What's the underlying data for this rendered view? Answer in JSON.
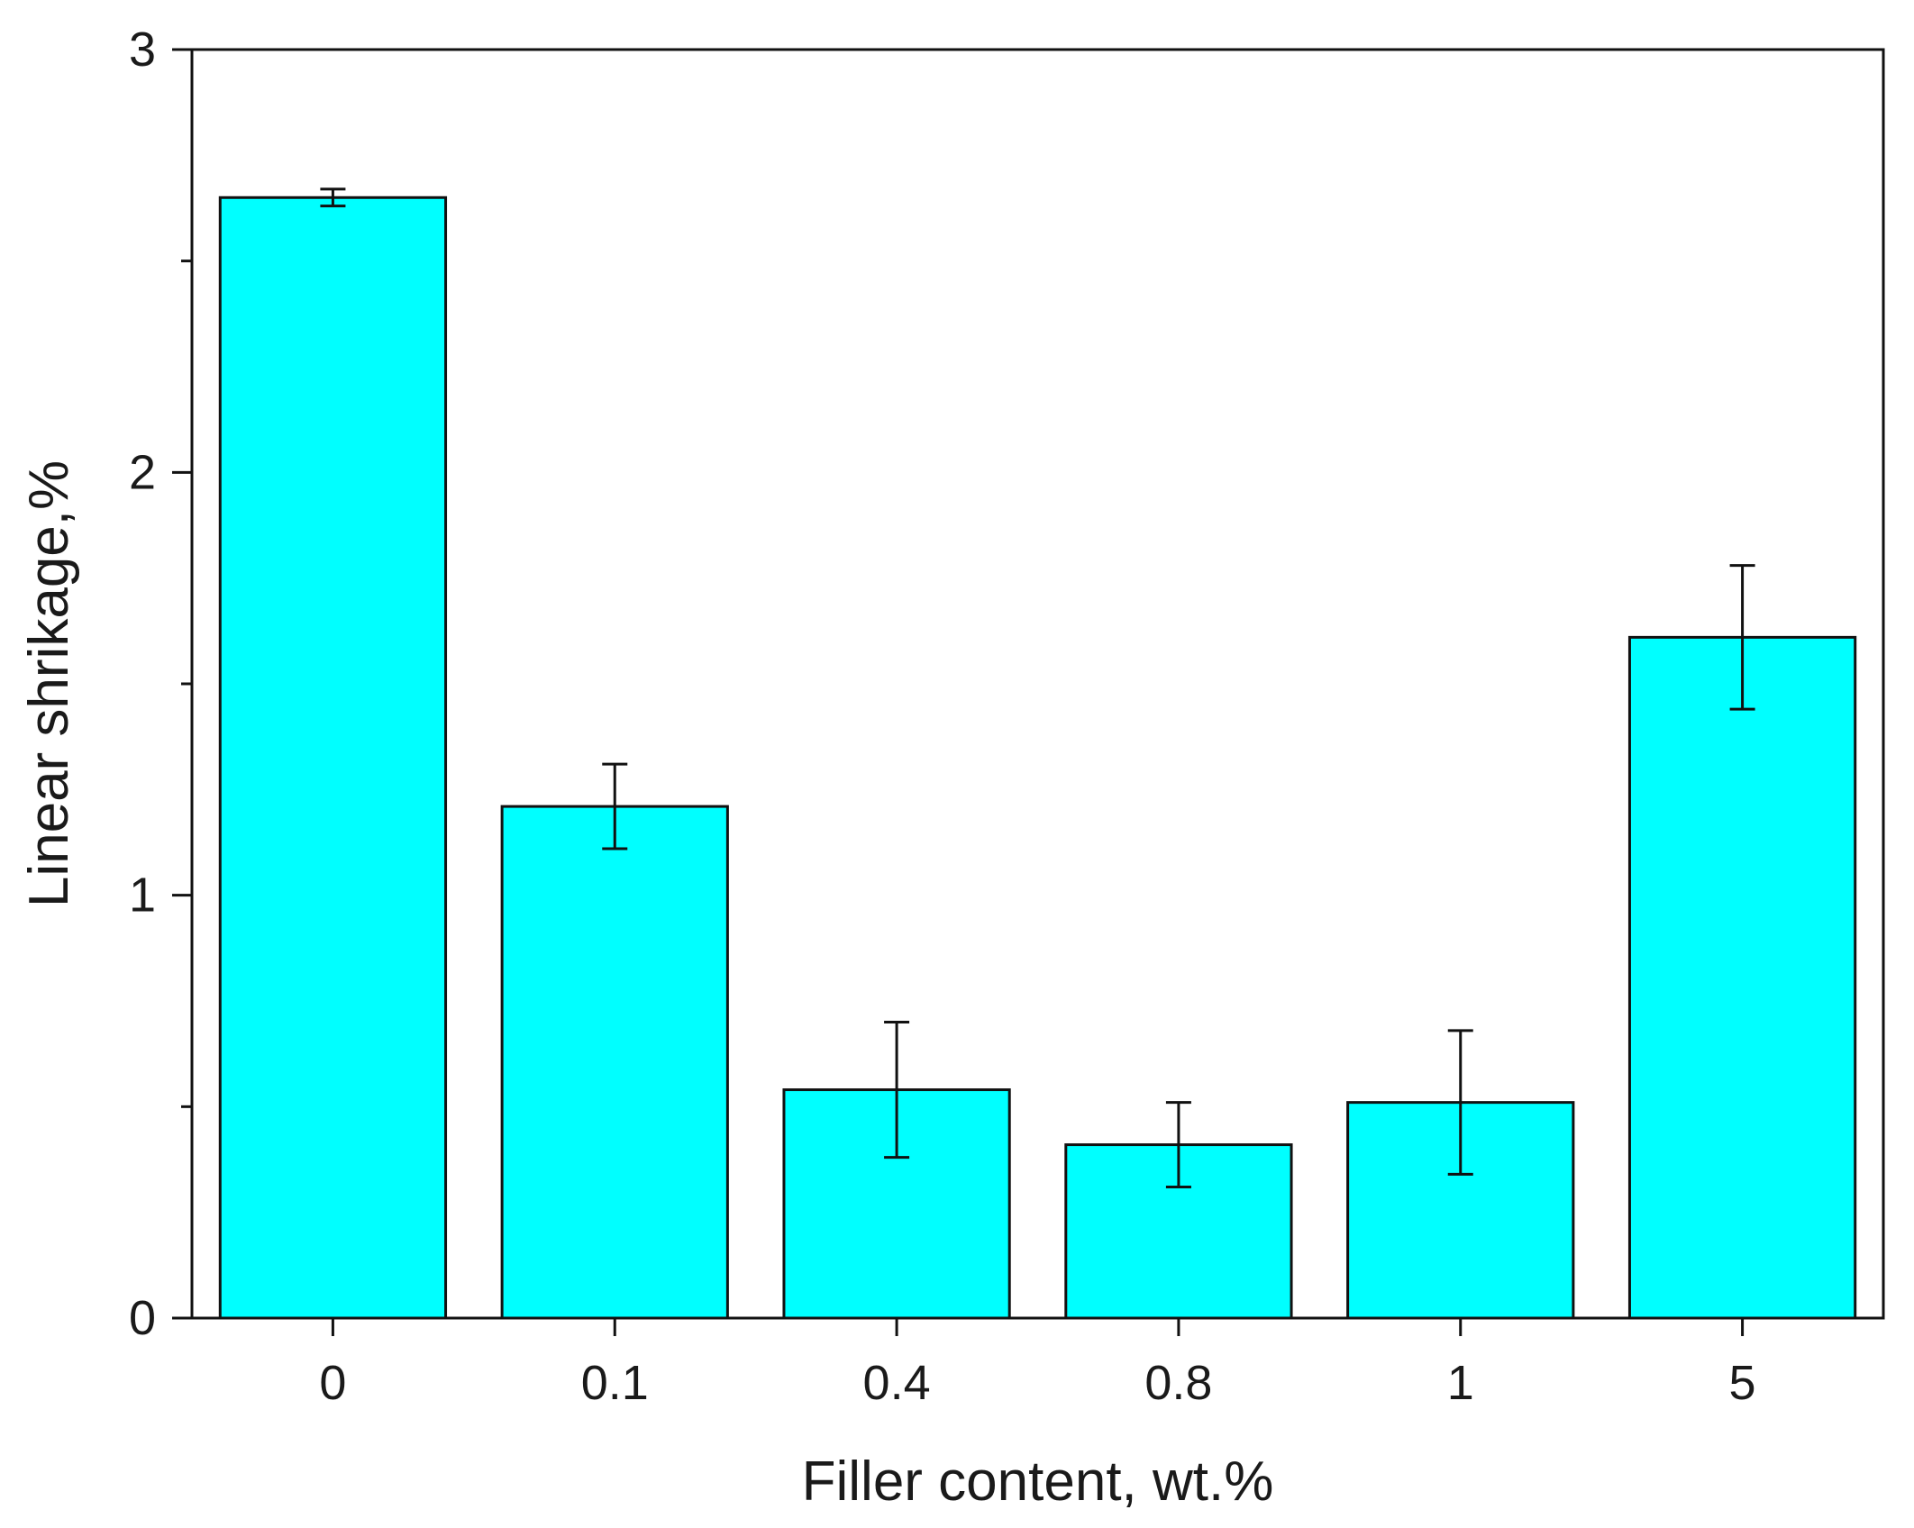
{
  "chart_data": {
    "type": "bar",
    "xlabel": "Filler content, wt.%",
    "ylabel": "Linear shrikage,%",
    "categories": [
      "0",
      "0.1",
      "0.4",
      "0.8",
      "1",
      "5"
    ],
    "values": [
      2.65,
      1.21,
      0.54,
      0.41,
      0.51,
      1.61
    ],
    "errors": [
      0.02,
      0.1,
      0.16,
      0.1,
      0.17,
      0.17
    ],
    "ylim": [
      0,
      3
    ],
    "yticks": [
      0,
      1,
      2,
      3
    ],
    "grid": false,
    "colors": {
      "bar": "#00ffff",
      "outline": "#111111"
    }
  }
}
